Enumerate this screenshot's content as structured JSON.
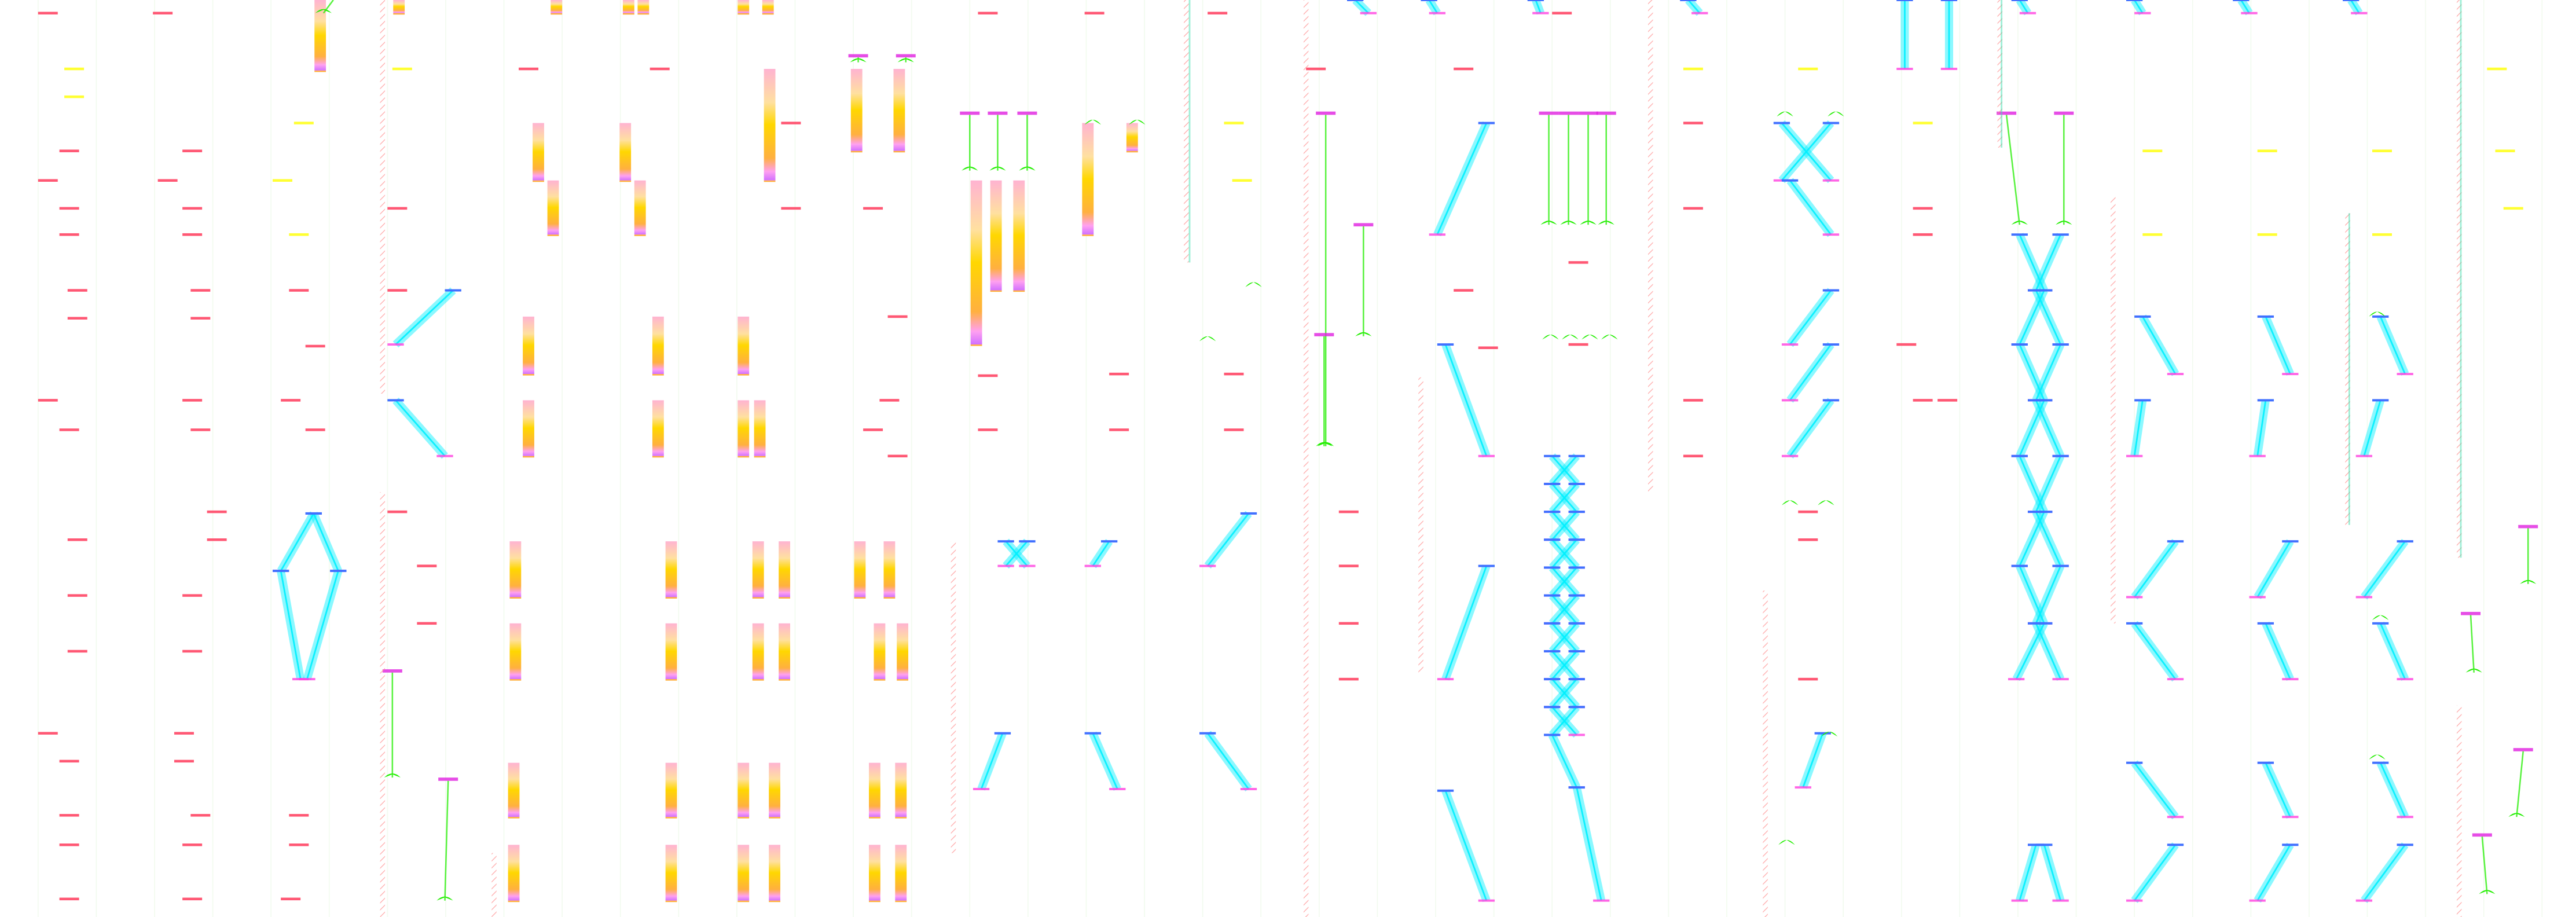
{
  "palette": {
    "background": "#ffffff",
    "dash_red": "#ff3b5c",
    "dash_yellow": "#ffff33",
    "bar_pink": "#ffb3d1",
    "bar_peach": "#ffe0a0",
    "bar_gold": "#ffd700",
    "bar_orange": "#ffb040",
    "bar_violet": "#e070ff",
    "diag_cyan": "#00f0ff",
    "diag_blue": "#4070ff",
    "diag_magenta": "#ff40e0",
    "connector_green": "#22ee00",
    "header_magenta": "#e020e0",
    "hatch_red": "#ff8080",
    "hatch_teal": "#40e0b0",
    "grid_line": "#f2fbef"
  }
}
